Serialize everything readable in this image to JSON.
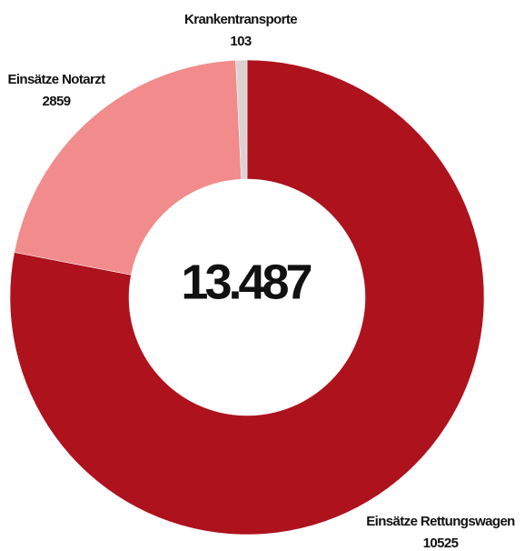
{
  "chart_data": {
    "type": "donut",
    "categories": [
      "Einsätze Rettungswagen",
      "Einsätze Notarzt",
      "Krankentransporte"
    ],
    "values": [
      10525,
      2859,
      103
    ],
    "colors": [
      "#ae121d",
      "#f28b8b",
      "#dcd2d2"
    ],
    "center_label": "13.487"
  }
}
